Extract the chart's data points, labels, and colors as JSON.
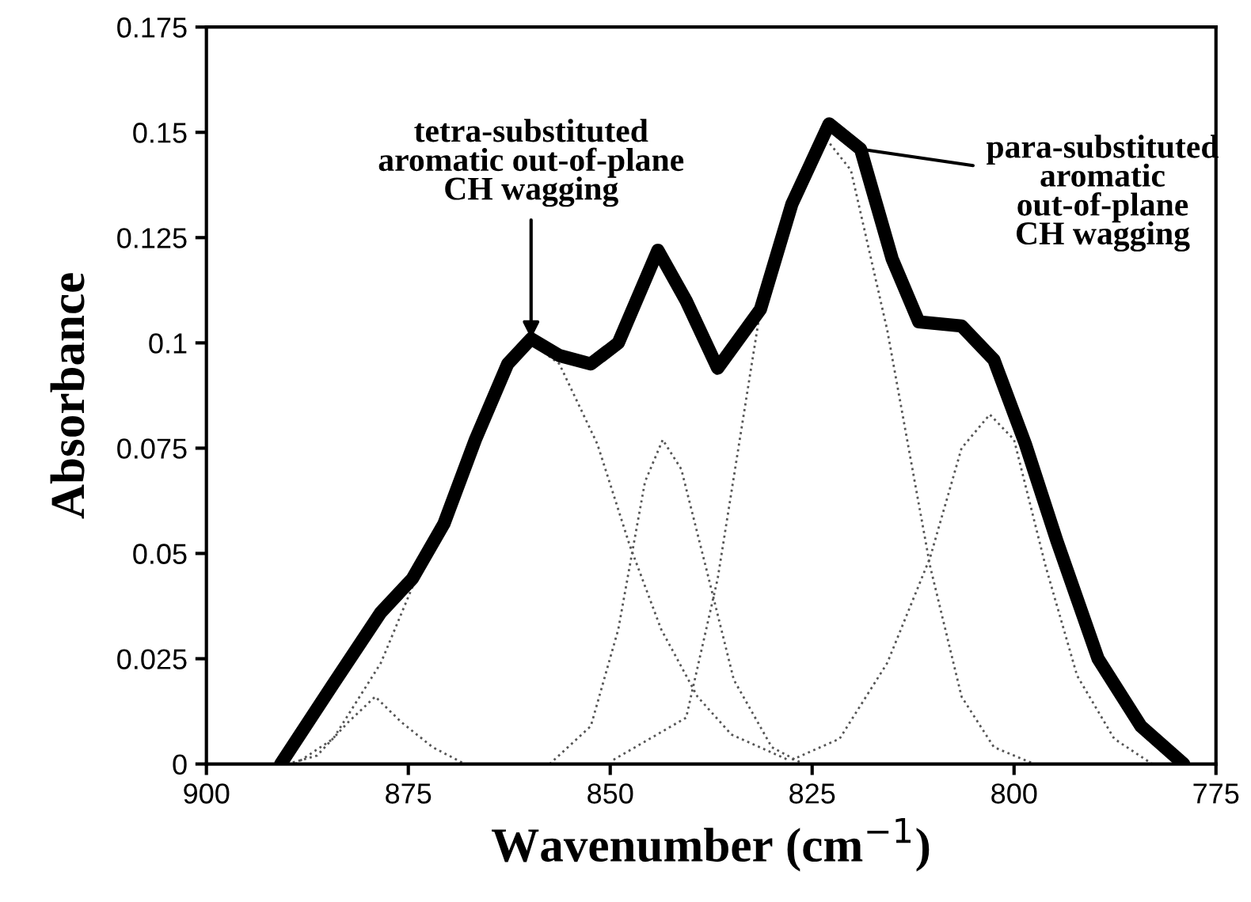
{
  "chart_data": {
    "type": "line",
    "xlabel": "Wavenumber (cm$^{−1}$)",
    "ylabel": "Absorbance",
    "xlim": [
      900,
      775
    ],
    "xticks": [
      900,
      875,
      850,
      825,
      800,
      775
    ],
    "ylim": [
      0,
      0.175
    ],
    "yticks": [
      0,
      0.025,
      0.05,
      0.075,
      0.1,
      0.125,
      0.15,
      0.175
    ],
    "grid": false,
    "legend": false,
    "marker": "none",
    "series": [
      {
        "color": "#000000",
        "line_style": "solid",
        "x": [
          890.8,
          884.3,
          878.4,
          874.5,
          870.6,
          866.7,
          862.7,
          859.8,
          856.3,
          852.4,
          849,
          844.1,
          840.6,
          836.7,
          831.4,
          827.5,
          822.9,
          819,
          815.1,
          811.8,
          806.5,
          802.5,
          798.6,
          794.7,
          789.6,
          784.3,
          779
        ],
        "values": [
          0,
          0.019,
          0.036,
          0.044,
          0.057,
          0.077,
          0.095,
          0.101,
          0.097,
          0.095,
          0.1,
          0.122,
          0.11,
          0.094,
          0.108,
          0.133,
          0.152,
          0.146,
          0.12,
          0.105,
          0.104,
          0.096,
          0.076,
          0.053,
          0.025,
          0.009,
          0
        ]
      },
      {
        "color": "#555555",
        "line_style": "dotted",
        "x": [
          890,
          886.3,
          882.4,
          879.1,
          875.9,
          872,
          868
        ],
        "values": [
          0,
          0.002,
          0.01,
          0.016,
          0.01,
          0.004,
          0
        ]
      },
      {
        "color": "#555555",
        "line_style": "dotted",
        "x": [
          889,
          884.3,
          878.4,
          874.5,
          870.6,
          866.7,
          862.7,
          859.8,
          856.3,
          851.6,
          847.6,
          843.7,
          839.2,
          835,
          828
        ],
        "values": [
          0,
          0.006,
          0.024,
          0.042,
          0.057,
          0.077,
          0.094,
          0.1,
          0.095,
          0.076,
          0.052,
          0.032,
          0.016,
          0.007,
          0.001
        ]
      },
      {
        "color": "#555555",
        "line_style": "dotted",
        "x": [
          857.5,
          852.4,
          849,
          845.7,
          843.5,
          841.2,
          837.8,
          834.7,
          830,
          826.1
        ],
        "values": [
          0,
          0.009,
          0.032,
          0.067,
          0.077,
          0.07,
          0.044,
          0.02,
          0.004,
          0
        ]
      },
      {
        "color": "#555555",
        "line_style": "dotted",
        "x": [
          849.6,
          840.6,
          836.7,
          831.4,
          827.5,
          823.5,
          820.2,
          815.7,
          810.4,
          806.5,
          802.5,
          797.5
        ],
        "values": [
          0.001,
          0.011,
          0.044,
          0.108,
          0.133,
          0.149,
          0.141,
          0.103,
          0.047,
          0.016,
          0.004,
          0
        ]
      },
      {
        "color": "#555555",
        "line_style": "dotted",
        "x": [
          827.5,
          821.6,
          815.7,
          810.4,
          806.5,
          803,
          800,
          796.1,
          792.2,
          787.6,
          782.9
        ],
        "values": [
          0.001,
          0.006,
          0.024,
          0.049,
          0.075,
          0.083,
          0.077,
          0.047,
          0.021,
          0.006,
          0
        ]
      }
    ],
    "annotations": [
      {
        "text": "tetra-substituted\naromatic out-of-plane\nCH wagging",
        "x": 859.8,
        "y": 0.101
      },
      {
        "text": "para-substituted\naromatic\nout-of-plane\nCH wagging",
        "x": 819,
        "y": 0.146
      }
    ]
  }
}
